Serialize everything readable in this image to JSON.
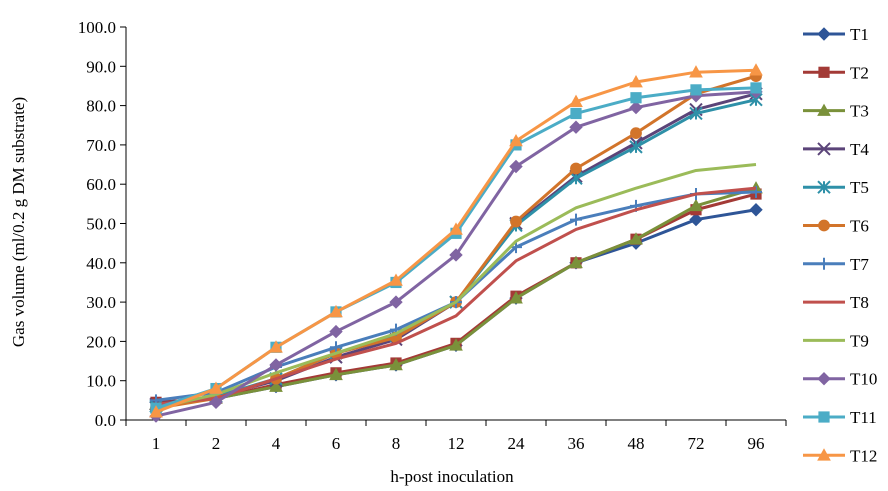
{
  "chart_data": {
    "type": "line",
    "title": "",
    "xlabel": "h-post inoculation",
    "ylabel": "Gas volume (ml/0.2  g DM substrate)",
    "ylim": [
      0,
      100
    ],
    "y_ticks": [
      "0.0",
      "10.0",
      "20.0",
      "30.0",
      "40.0",
      "50.0",
      "60.0",
      "70.0",
      "80.0",
      "90.0",
      "100.0"
    ],
    "categories": [
      "1",
      "2",
      "4",
      "6",
      "8",
      "12",
      "24",
      "36",
      "48",
      "72",
      "96"
    ],
    "grid": false,
    "legend_position": "right",
    "series": [
      {
        "name": "T1",
        "color": "#2E5597",
        "marker": "diamond",
        "values": [
          4.5,
          5.5,
          8.5,
          11.5,
          14.0,
          19.0,
          31.0,
          40.0,
          45.0,
          51.0,
          53.5
        ]
      },
      {
        "name": "T2",
        "color": "#A33A36",
        "marker": "square",
        "values": [
          4.5,
          5.5,
          9.0,
          12.0,
          14.5,
          19.5,
          31.5,
          40.0,
          46.0,
          53.5,
          57.5
        ]
      },
      {
        "name": "T3",
        "color": "#7A913A",
        "marker": "triangle",
        "values": [
          4.0,
          5.5,
          8.5,
          11.5,
          14.0,
          19.0,
          31.0,
          40.0,
          46.0,
          54.5,
          59.0
        ]
      },
      {
        "name": "T4",
        "color": "#5B4479",
        "marker": "x",
        "values": [
          4.0,
          6.0,
          10.0,
          16.0,
          20.5,
          30.0,
          50.0,
          62.0,
          70.5,
          79.0,
          83.0
        ]
      },
      {
        "name": "T5",
        "color": "#2E90A8",
        "marker": "star",
        "values": [
          3.5,
          6.0,
          10.5,
          17.0,
          21.5,
          30.0,
          49.5,
          61.5,
          69.5,
          78.0,
          81.5
        ]
      },
      {
        "name": "T6",
        "color": "#D2742A",
        "marker": "circle",
        "values": [
          3.0,
          5.5,
          10.5,
          17.0,
          21.0,
          30.0,
          50.5,
          64.0,
          73.0,
          83.0,
          87.5
        ]
      },
      {
        "name": "T7",
        "color": "#4A7EBB",
        "marker": "plus",
        "values": [
          5.0,
          7.0,
          13.5,
          18.5,
          23.0,
          30.0,
          44.0,
          51.0,
          54.5,
          57.5,
          58.0
        ]
      },
      {
        "name": "T8",
        "color": "#C0504D",
        "marker": "dash",
        "values": [
          4.0,
          5.5,
          10.5,
          15.5,
          19.5,
          26.5,
          40.5,
          48.5,
          53.5,
          57.5,
          59.0
        ]
      },
      {
        "name": "T9",
        "color": "#9BBB59",
        "marker": "dash",
        "values": [
          3.0,
          6.5,
          12.0,
          17.0,
          22.0,
          30.0,
          45.5,
          54.0,
          59.0,
          63.5,
          65.0
        ]
      },
      {
        "name": "T10",
        "color": "#8064A2",
        "marker": "diamond",
        "values": [
          1.0,
          4.5,
          14.0,
          22.5,
          30.0,
          42.0,
          64.5,
          74.5,
          79.5,
          82.5,
          83.5
        ]
      },
      {
        "name": "T11",
        "color": "#4BACC6",
        "marker": "square",
        "values": [
          3.0,
          8.0,
          18.5,
          27.5,
          35.0,
          47.5,
          70.0,
          78.0,
          82.0,
          84.0,
          84.5
        ]
      },
      {
        "name": "T12",
        "color": "#F79646",
        "marker": "triangle",
        "values": [
          2.0,
          8.0,
          18.5,
          27.5,
          35.5,
          48.5,
          71.0,
          81.0,
          86.0,
          88.5,
          89.0
        ]
      }
    ]
  }
}
